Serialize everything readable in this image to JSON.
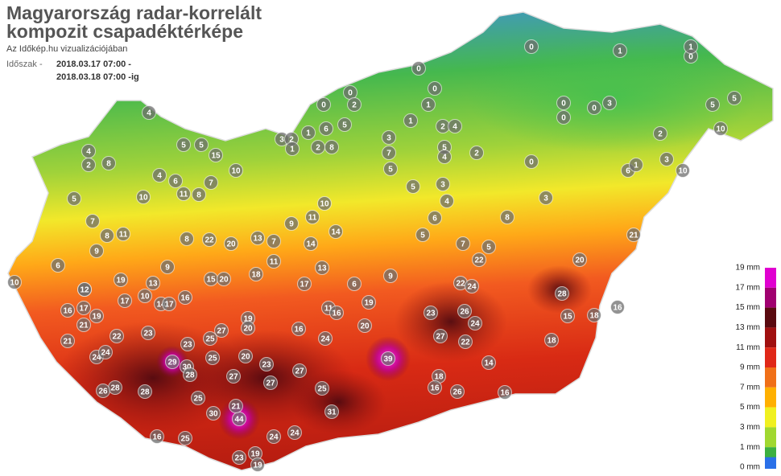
{
  "header": {
    "title_lines": [
      "Magyarország radar-korrelált",
      "kompozit csapadéktérképe"
    ],
    "subtitle": "Az Időkép.hu vizualizációjában",
    "period_label": "Időszak -",
    "period_from": "2018.03.17 07:00 -",
    "period_to": "2018.03.18 07:00 -ig"
  },
  "legend": {
    "labels": [
      "19 mm",
      "17 mm",
      "15 mm",
      "13 mm",
      "11 mm",
      "9 mm",
      "7 mm",
      "5 mm",
      "3 mm",
      "1 mm",
      "0 mm"
    ],
    "colors": [
      "#e000d0",
      "#a00070",
      "#5a0a10",
      "#a01010",
      "#e02818",
      "#f07018",
      "#ffb000",
      "#f0f020",
      "#a0d830",
      "#3cb040",
      "#2a70e8"
    ]
  },
  "stations": [
    4,
    4,
    8,
    2,
    5,
    5,
    15,
    4,
    6,
    7,
    10,
    10,
    11,
    8,
    5,
    7,
    8,
    11,
    9,
    6,
    10,
    12,
    19,
    9,
    8,
    22,
    20,
    13,
    7,
    11,
    14,
    14,
    9,
    11,
    10,
    15,
    20,
    18,
    17,
    13,
    6,
    9,
    19,
    11,
    16,
    16,
    24,
    20,
    39,
    23,
    26,
    27,
    24,
    22,
    28,
    22,
    24,
    20,
    21,
    22,
    14,
    18,
    15,
    16,
    18,
    18,
    16,
    26,
    16,
    31,
    44,
    25,
    27,
    23,
    27,
    27,
    20,
    25,
    25,
    23,
    29,
    30,
    28,
    28,
    28,
    26,
    24,
    24,
    22,
    23,
    27,
    19,
    20,
    25,
    30,
    21,
    25,
    16,
    23,
    19,
    19,
    24,
    24,
    21,
    21,
    19,
    16,
    17,
    17,
    13,
    10,
    14,
    17,
    16,
    12,
    3,
    0,
    2,
    5,
    4,
    3,
    7,
    5,
    5,
    3,
    4,
    6,
    5,
    7,
    5,
    8,
    0,
    1,
    0,
    1,
    5,
    5,
    10,
    10,
    3,
    2,
    6,
    1,
    3,
    0,
    0,
    0,
    0,
    1,
    1,
    2,
    4,
    0,
    0,
    0,
    2,
    1,
    3,
    2,
    1,
    2,
    6,
    5,
    8
  ]
}
